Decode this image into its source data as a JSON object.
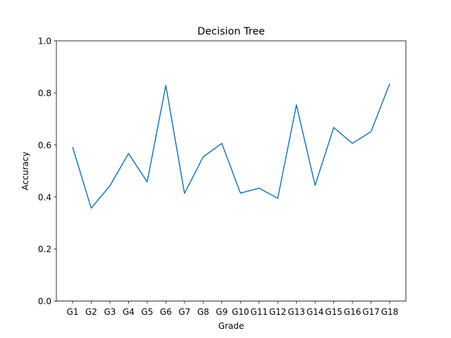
{
  "chart_data": {
    "type": "line",
    "title": "Decision Tree",
    "xlabel": "Grade",
    "ylabel": "Accuracy",
    "categories": [
      "G1",
      "G2",
      "G3",
      "G4",
      "G5",
      "G6",
      "G7",
      "G8",
      "G9",
      "G10",
      "G11",
      "G12",
      "G13",
      "G14",
      "G15",
      "G16",
      "G17",
      "G18"
    ],
    "series": [
      {
        "values": [
          0.592,
          0.357,
          0.443,
          0.567,
          0.458,
          0.829,
          0.414,
          0.554,
          0.606,
          0.415,
          0.434,
          0.395,
          0.754,
          0.445,
          0.667,
          0.606,
          0.651,
          0.835
        ],
        "color": "#1f77b4"
      }
    ],
    "ylim": [
      0,
      1.0
    ],
    "yticks": [
      "0.0",
      "0.2",
      "0.4",
      "0.6",
      "0.8",
      "1.0"
    ],
    "grid": false,
    "legend": "none"
  }
}
